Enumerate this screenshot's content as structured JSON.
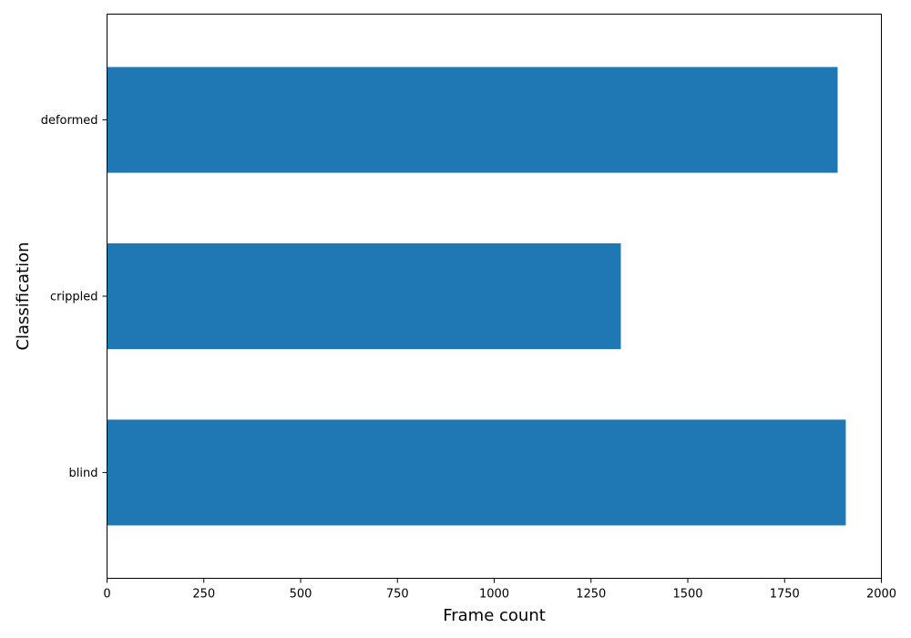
{
  "chart_data": {
    "type": "bar",
    "orientation": "horizontal",
    "title": "",
    "xlabel": "Frame count",
    "ylabel": "Classification",
    "categories": [
      "blind",
      "crippled",
      "deformed"
    ],
    "values": [
      1908,
      1327,
      1887
    ],
    "xlim": [
      0,
      2000
    ],
    "xticks": [
      0,
      250,
      500,
      750,
      1000,
      1250,
      1500,
      1750,
      2000
    ],
    "grid": false,
    "legend": "none",
    "bar_color": "#1f77b4"
  }
}
